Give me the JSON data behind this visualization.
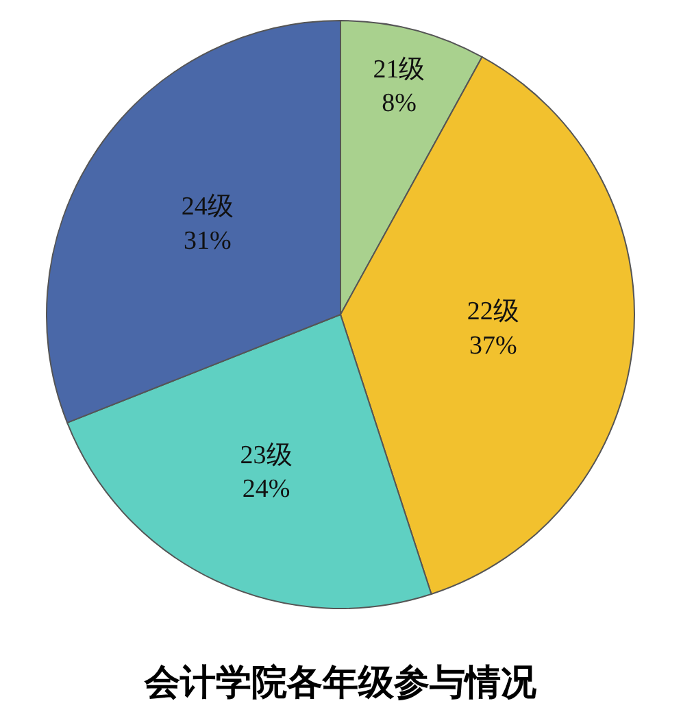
{
  "chart_data": {
    "type": "pie",
    "title": "会计学院各年级参与情况",
    "categories": [
      "21级",
      "22级",
      "23级",
      "24级"
    ],
    "values": [
      8,
      37,
      24,
      31
    ],
    "value_labels": [
      "8%",
      "37%",
      "24%",
      "31%"
    ],
    "colors": [
      "#a9d18e",
      "#f2c12e",
      "#5fd0c2",
      "#4a68a8"
    ],
    "legend": false
  }
}
